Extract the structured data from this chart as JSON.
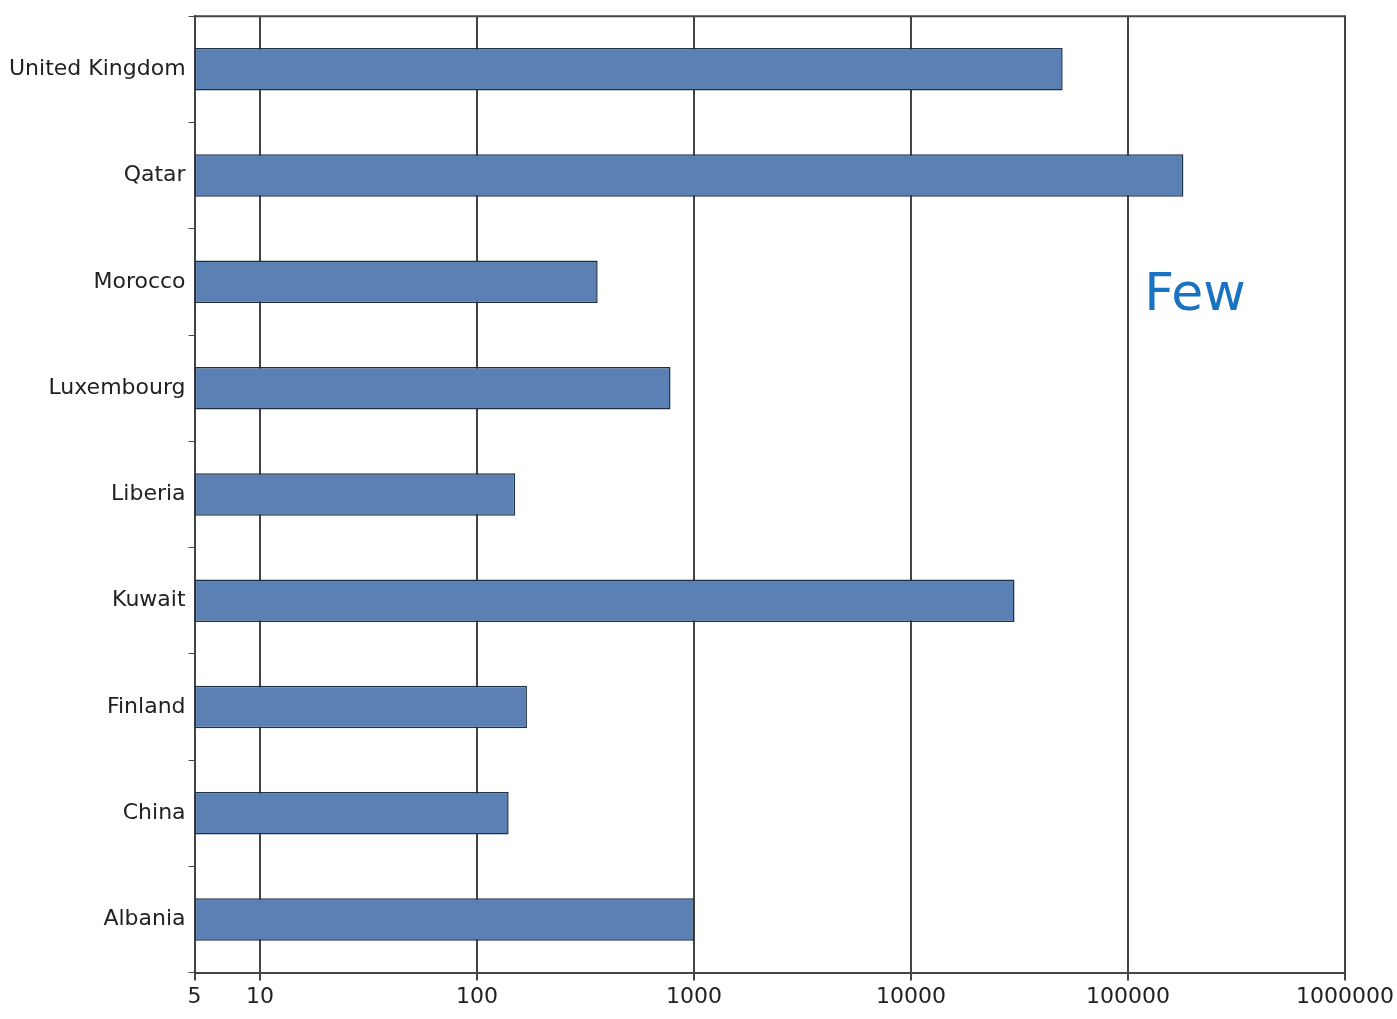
{
  "chart_data": {
    "type": "bar",
    "orientation": "horizontal",
    "categories": [
      "United Kingdom",
      "Qatar",
      "Morocco",
      "Luxembourg",
      "Liberia",
      "Kuwait",
      "Finland",
      "China",
      "Albania"
    ],
    "values": [
      50000,
      180000,
      360,
      780,
      150,
      30000,
      170,
      140,
      1000
    ],
    "color": "#5b80b4",
    "log": "x",
    "xlim": [
      5,
      1000000
    ],
    "xticks": [
      5,
      10,
      100,
      1000,
      10000,
      100000,
      1000000
    ],
    "grid": "x",
    "legend": false,
    "annotations": [
      "Few"
    ]
  }
}
